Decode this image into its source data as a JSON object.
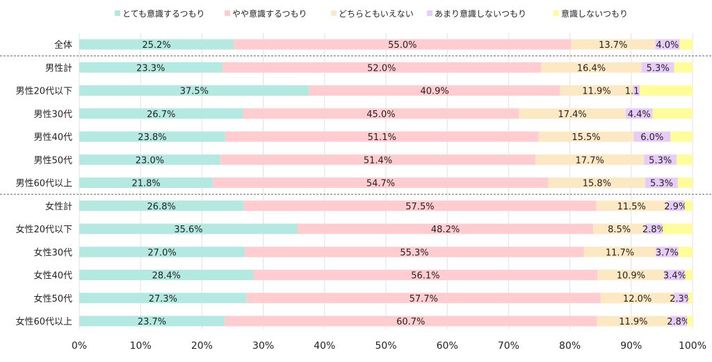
{
  "chart_data": {
    "type": "bar",
    "orientation": "horizontal",
    "stacked": true,
    "title": "",
    "xlabel": "",
    "ylabel": "",
    "xlim": [
      0,
      100
    ],
    "x_ticks": [
      "0%",
      "10%",
      "20%",
      "30%",
      "40%",
      "50%",
      "60%",
      "70%",
      "80%",
      "90%",
      "100%"
    ],
    "grid": true,
    "legend_position": "top",
    "group_separators_after": [
      "全体",
      "男性60代以上"
    ],
    "categories": [
      "全体",
      "男性計",
      "男性20代以下",
      "男性30代",
      "男性40代",
      "男性50代",
      "男性60代以上",
      "女性計",
      "女性20代以下",
      "女性30代",
      "女性40代",
      "女性50代",
      "女性60代以上"
    ],
    "series": [
      {
        "name": "とても意識するつもり",
        "color": "#b3e9e0",
        "labeled": true,
        "values": [
          25.2,
          23.3,
          37.5,
          26.7,
          23.8,
          23.0,
          21.8,
          26.8,
          35.6,
          27.0,
          28.4,
          27.3,
          23.7
        ]
      },
      {
        "name": "やや意識するつもり",
        "color": "#ffccd0",
        "labeled": true,
        "values": [
          55.0,
          52.0,
          40.9,
          45.0,
          51.1,
          51.4,
          54.7,
          57.5,
          48.2,
          55.3,
          56.1,
          57.7,
          60.7
        ]
      },
      {
        "name": "どちらともいえない",
        "color": "#fde8c4",
        "labeled": true,
        "values": [
          13.7,
          16.4,
          11.9,
          17.4,
          15.5,
          17.7,
          15.8,
          11.5,
          8.5,
          11.7,
          10.9,
          12.0,
          11.9
        ]
      },
      {
        "name": "あまり意識しないつもり",
        "color": "#e8ccf8",
        "labeled": true,
        "values": [
          4.0,
          5.3,
          1.1,
          4.4,
          6.0,
          5.3,
          5.3,
          2.9,
          2.8,
          3.7,
          3.4,
          2.3,
          2.8
        ]
      },
      {
        "name": "意識しないつもり",
        "color": "#fefd99",
        "labeled": false,
        "values": [
          2.1,
          3.0,
          8.6,
          6.5,
          3.6,
          2.6,
          2.4,
          1.3,
          4.9,
          2.3,
          1.2,
          0.7,
          0.9
        ]
      }
    ]
  }
}
